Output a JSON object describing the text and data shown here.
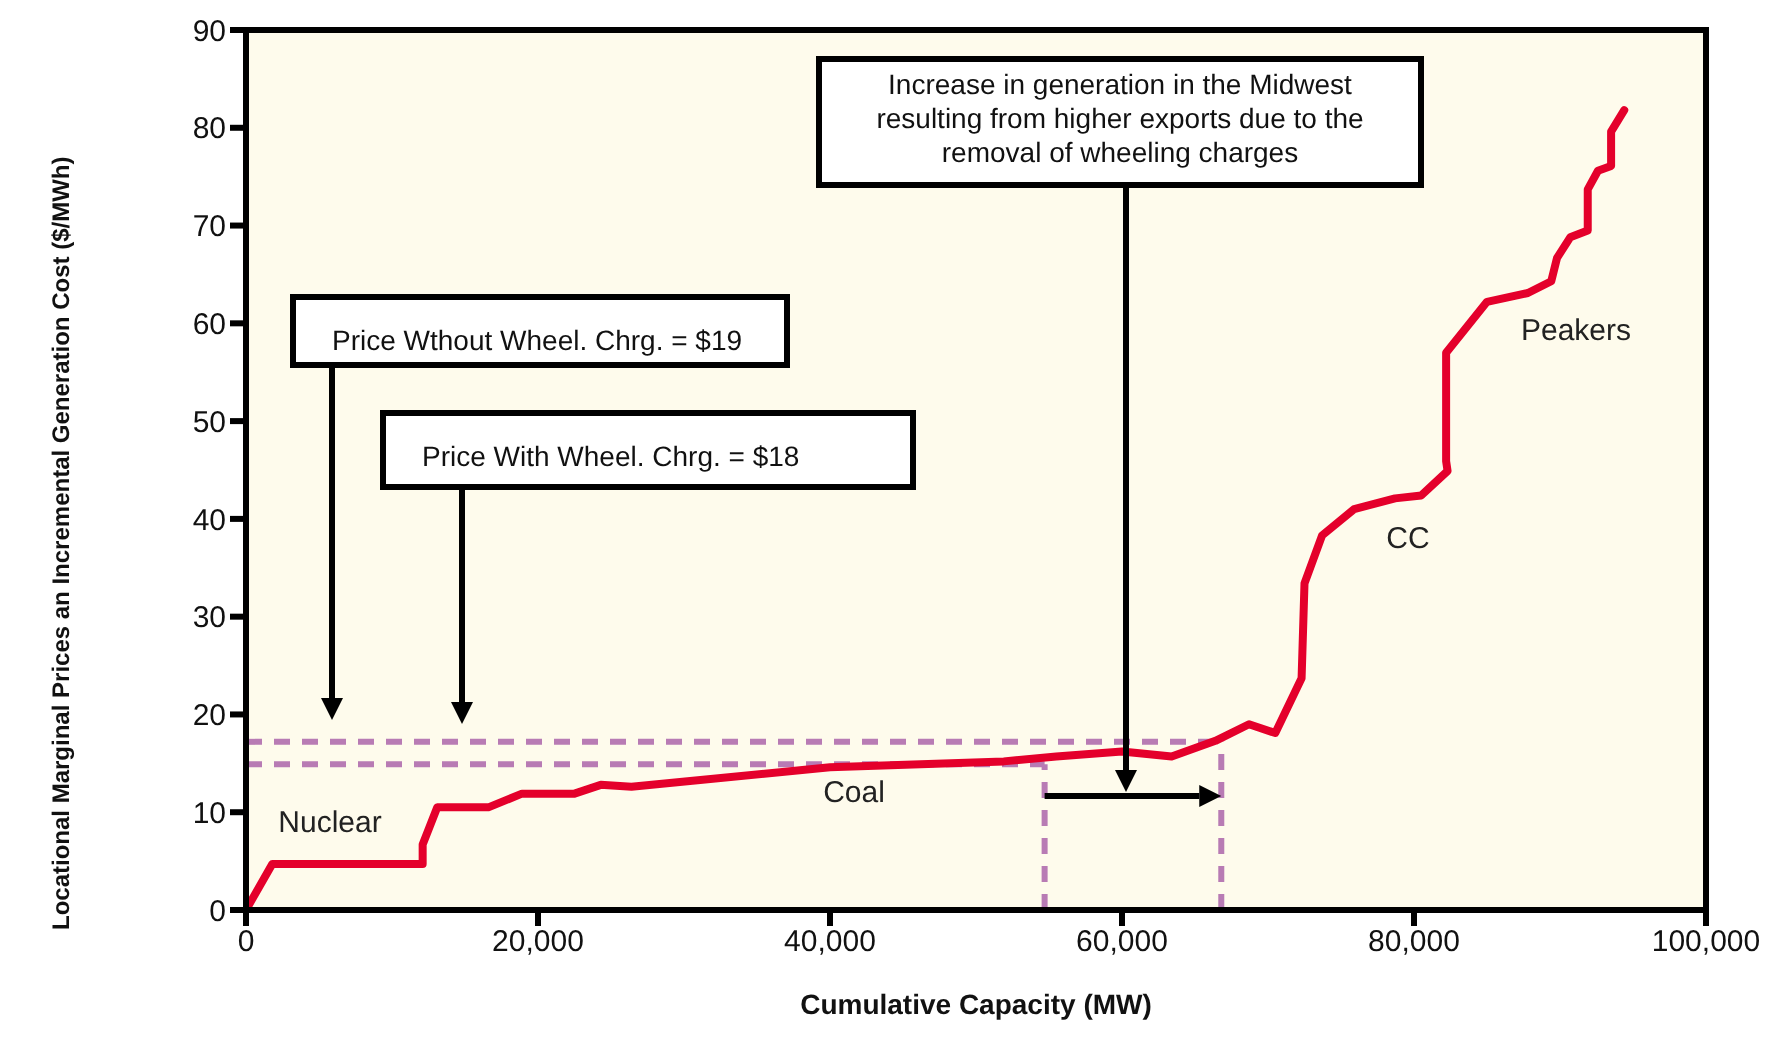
{
  "chart_data": {
    "type": "line",
    "xlabel": "Cumulative Capacity (MW)",
    "ylabel": "Locational Marginal Prices an Incremental Generation Cost ($/MWh)",
    "x": [
      0,
      1800,
      12100,
      12100,
      13100,
      16600,
      18900,
      22500,
      24300,
      26400,
      40000,
      51900,
      55500,
      60000,
      63400,
      66400,
      68700,
      70500,
      72300,
      72500,
      73700,
      75900,
      78700,
      80500,
      82300,
      82200,
      82200,
      85000,
      87800,
      89400,
      89800,
      90700,
      91900,
      91900,
      92600,
      93500,
      93500,
      94400
    ],
    "series": [
      {
        "color": "#e4002b",
        "values": [
          0,
          4.7,
          4.7,
          6.7,
          10.5,
          10.5,
          11.9,
          11.9,
          12.8,
          12.6,
          14.6,
          15.2,
          15.7,
          16.2,
          15.7,
          17.3,
          19.0,
          18.1,
          23.7,
          33.4,
          38.3,
          41.0,
          42.1,
          42.4,
          44.9,
          45.9,
          57.0,
          62.2,
          63.1,
          64.3,
          66.7,
          68.8,
          69.5,
          73.7,
          75.6,
          76.1,
          79.6,
          81.8
        ]
      }
    ],
    "xlim": [
      0,
      100000
    ],
    "xticks": [
      0,
      {
        "value": 20000,
        "label": "20,000"
      },
      {
        "value": 40000,
        "label": "40,000"
      },
      {
        "value": 60000,
        "label": "60,000"
      },
      {
        "value": 80000,
        "label": "80,000"
      },
      {
        "value": 100000,
        "label": "100,000"
      }
    ],
    "ylim": [
      0,
      90
    ],
    "yticks": [
      0,
      10,
      20,
      30,
      40,
      50,
      60,
      70,
      80,
      90
    ],
    "ref_lines": [
      {
        "axis": "y",
        "value": 17.2,
        "color": "#b87bb4",
        "line_style": "dashed"
      },
      {
        "axis": "y",
        "value": 14.9,
        "color": "#b87bb4",
        "line_style": "dashed"
      },
      {
        "axis": "x",
        "value": 66800,
        "color": "#b87bb4",
        "line_style": "dashed"
      },
      {
        "axis": "x",
        "value": 54700,
        "color": "#b87bb4",
        "line_style": "dashed"
      }
    ],
    "annotations": [
      "Price Wthout Wheel. Chrg. = $19",
      "Price With Wheel. Chrg. = $18",
      "Increase in generation in the Midwest resulting from higher exports due to the removal of wheeling charges",
      "Nuclear",
      "Coal",
      "CC",
      "Peakers"
    ],
    "grid": false,
    "legend": false,
    "marker": "none",
    "line_style": "solid"
  }
}
